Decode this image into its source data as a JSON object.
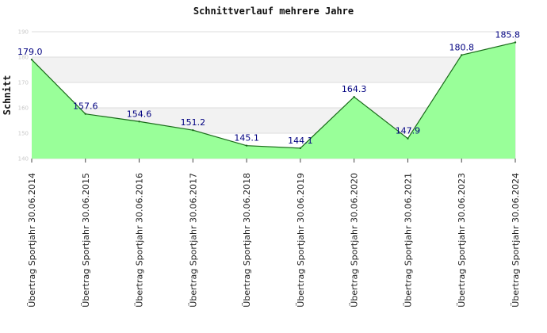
{
  "chart_data": {
    "type": "area",
    "title": "Schnittverlauf mehrere Jahre",
    "xlabel": "",
    "ylabel": "Schnitt",
    "ylim": [
      140,
      190
    ],
    "yticks": [
      140,
      150,
      160,
      170,
      180,
      190
    ],
    "grid": true,
    "legend": "none",
    "categories": [
      "Übertrag Sportjahr 30.06.2014",
      "Übertrag Sportjahr 30.06.2015",
      "Übertrag Sportjahr 30.06.2016",
      "Übertrag Sportjahr 30.06.2017",
      "Übertrag Sportjahr 30.06.2018",
      "Übertrag Sportjahr 30.06.2019",
      "Übertrag Sportjahr 30.06.2020",
      "Übertrag Sportjahr 30.06.2021",
      "Übertrag Sportjahr 30.06.2023",
      "Übertrag Sportjahr 30.06.2024"
    ],
    "values": [
      179.0,
      157.6,
      154.6,
      151.2,
      145.1,
      144.1,
      164.3,
      147.9,
      180.8,
      185.8
    ],
    "data_labels": [
      "179.0",
      "157.6",
      "154.6",
      "151.2",
      "145.1",
      "144.1",
      "164.3",
      "147.9",
      "180.8",
      "185.8"
    ],
    "colors": {
      "fill": "#99ff99",
      "line": "#1a6b1a",
      "label": "#000080",
      "band": "#f2f2f2",
      "grid": "#dddddd"
    }
  }
}
